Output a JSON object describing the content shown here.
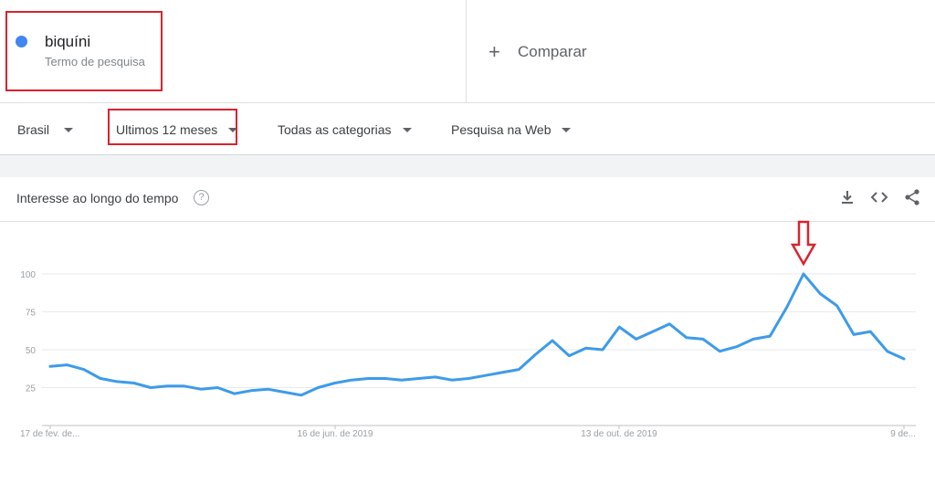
{
  "search_term": {
    "name": "biquíni",
    "type": "Termo de pesquisa",
    "color": "#4285f4"
  },
  "compare": {
    "label": "Comparar"
  },
  "filters": {
    "region": "Brasil",
    "period": "Ultimos 12 meses",
    "category": "Todas as categorias",
    "search_type": "Pesquisa na Web"
  },
  "card": {
    "title": "Interesse ao longo do tempo"
  },
  "icons": [
    "help-icon",
    "download-icon",
    "embed-icon",
    "share-icon"
  ],
  "chart_data": {
    "type": "line",
    "title": "",
    "xlabel": "",
    "ylabel": "",
    "ylim": [
      0,
      100
    ],
    "yticks": [
      25,
      50,
      75,
      100
    ],
    "xtick_labels": [
      "17 de fev. de...",
      "16 de jun. de 2019",
      "13 de out. de 2019",
      "9 de..."
    ],
    "grid": true,
    "series_color": "#3d9be9",
    "highlight_color": "#d9232e",
    "series": [
      {
        "values": [
          39,
          40,
          37,
          31,
          29,
          28,
          25,
          26,
          26,
          24,
          25,
          21,
          23,
          24,
          22,
          20,
          25,
          28,
          30,
          31,
          31,
          30,
          31,
          32,
          30,
          31,
          33,
          35,
          37,
          47,
          56,
          46,
          51,
          50,
          65,
          57,
          62,
          67,
          58,
          57,
          49,
          52,
          57,
          59,
          78,
          100,
          87,
          79,
          60,
          62,
          49,
          44
        ]
      }
    ]
  }
}
